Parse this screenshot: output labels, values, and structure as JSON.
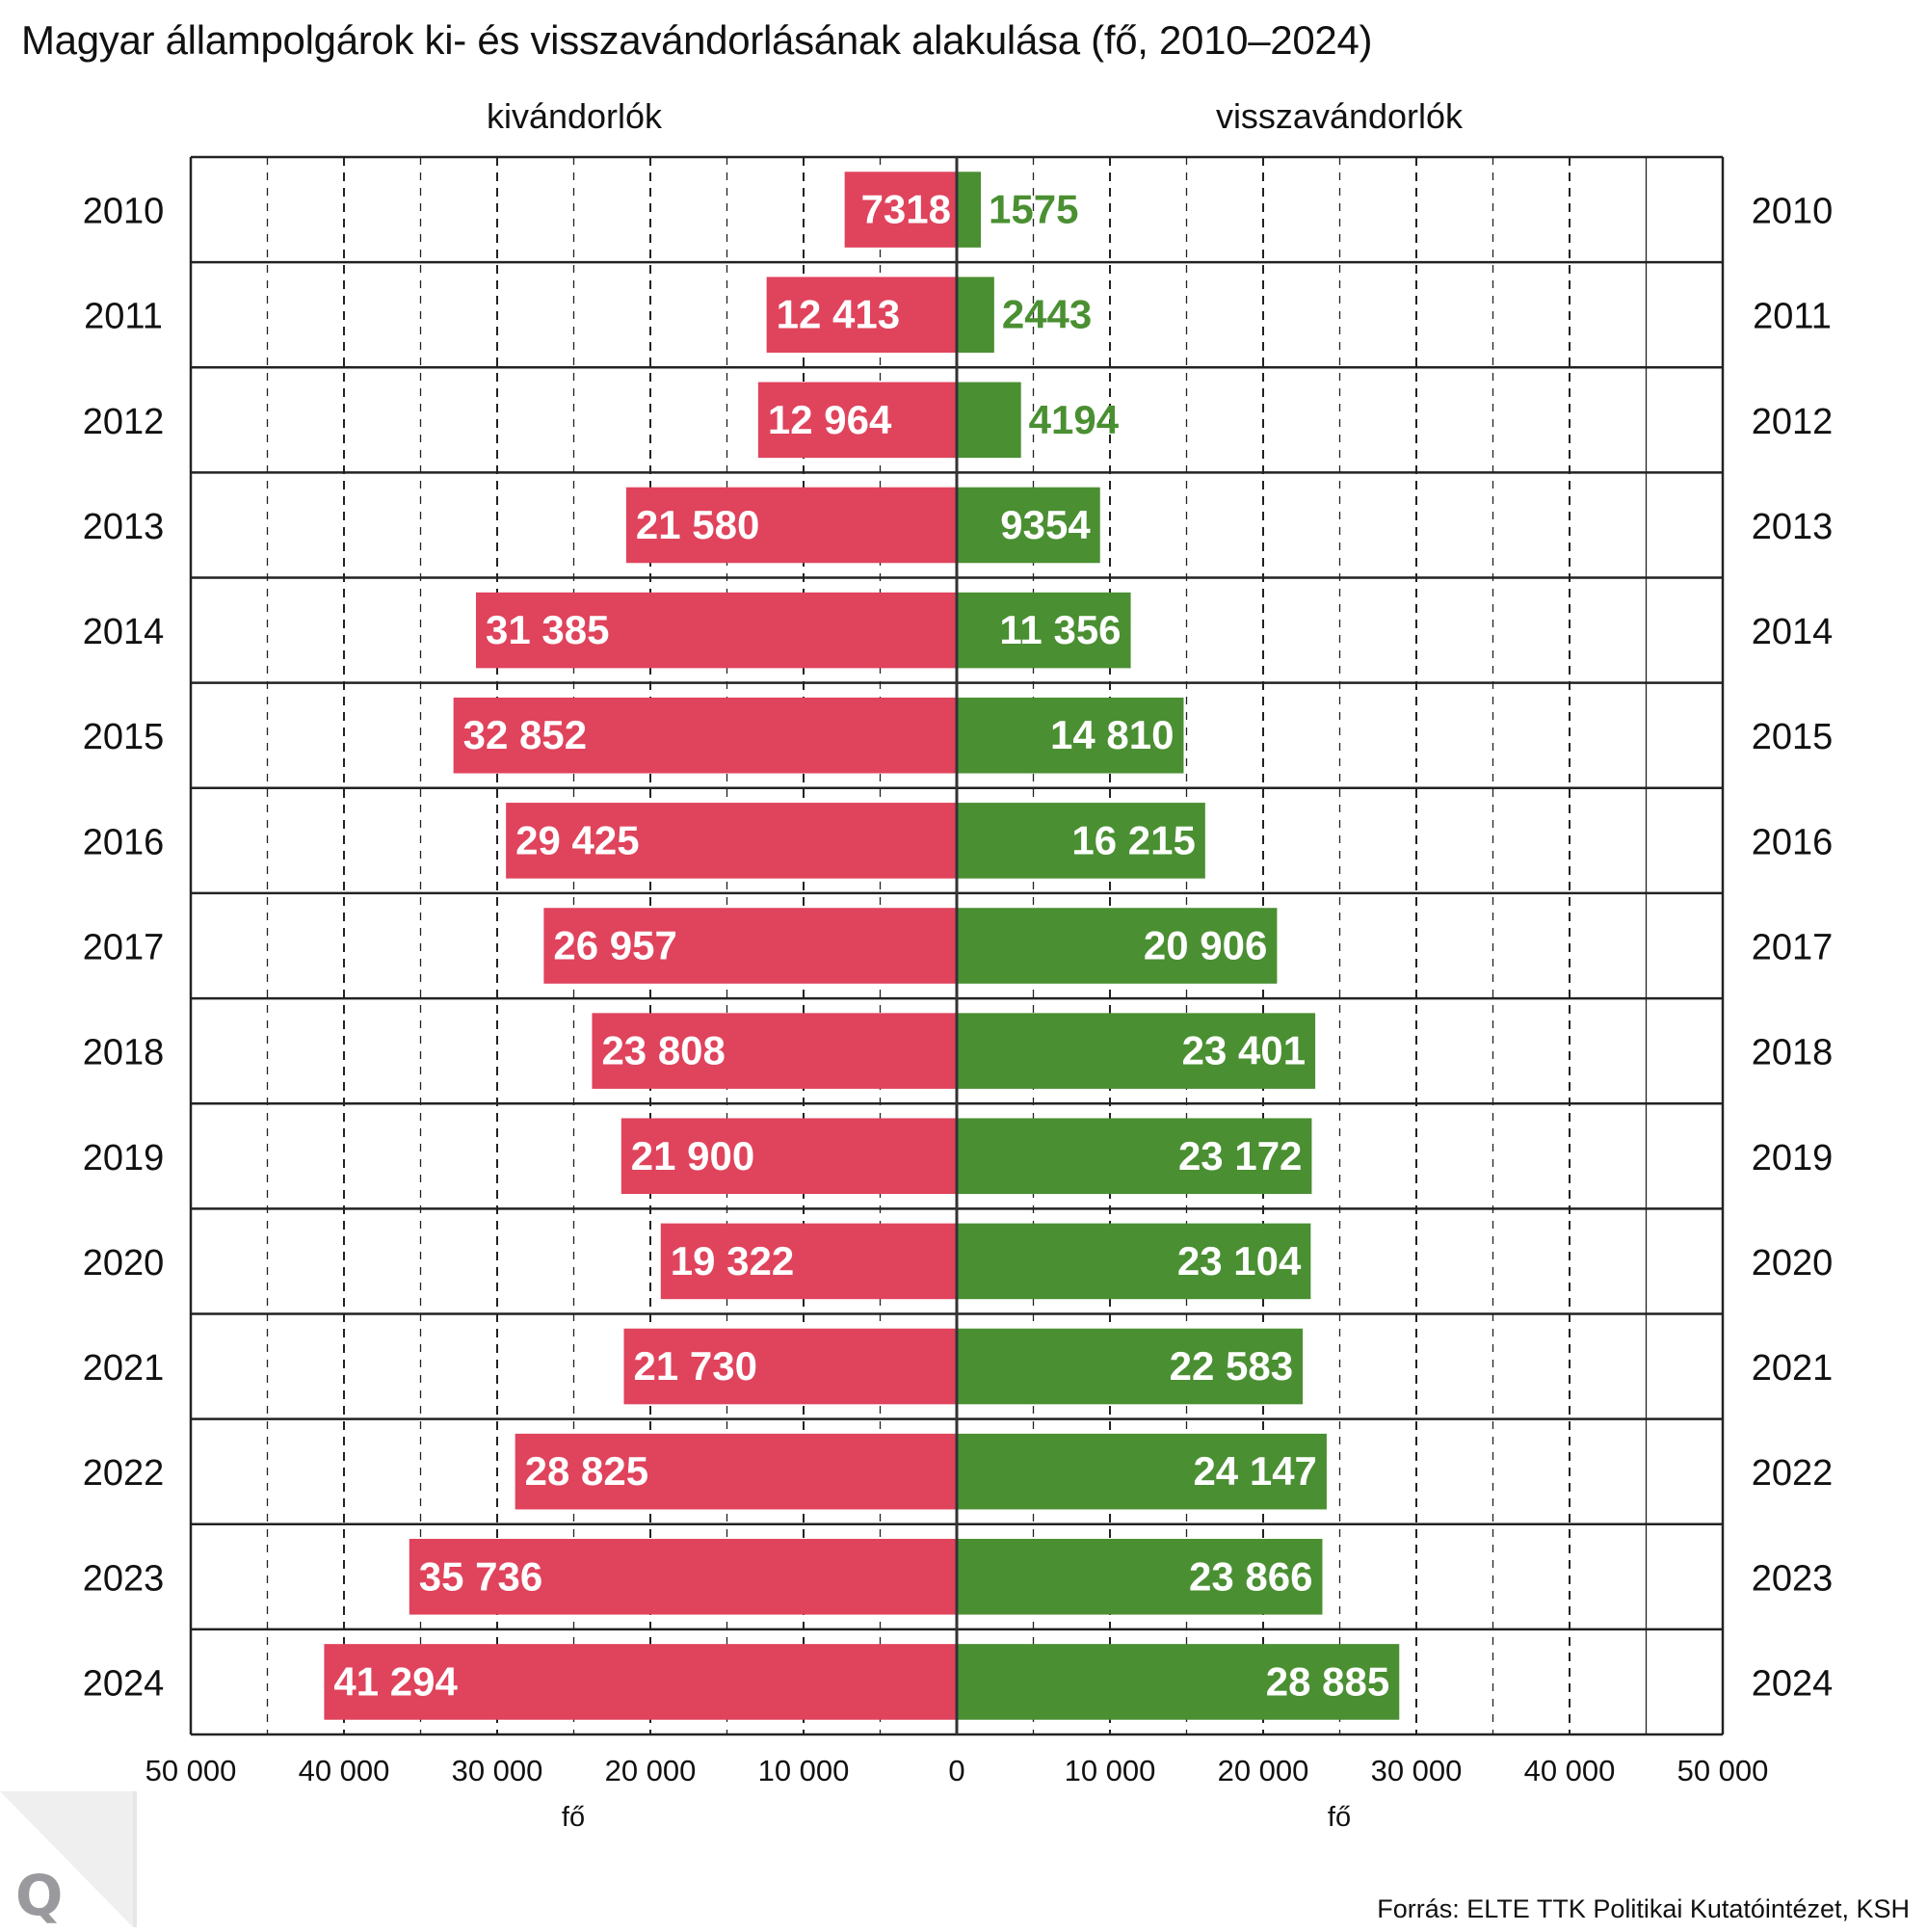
{
  "title": "Magyar állampolgárok ki- és visszavándorlásának alakulása (fő, 2010–2024)",
  "left_header": "kivándorlók",
  "right_header": "visszavándorlók",
  "unit_label": "fő",
  "source": "Forrás: ELTE TTK Politikai Kutatóintézet, KSH",
  "logo": {
    "icon": "q-logo-icon",
    "letter": "Q"
  },
  "colors": {
    "emigrants": "#e0435c",
    "returnees": "#4a8f32",
    "grid": "#222222",
    "text": "#111111",
    "logo_bg": "#efefef",
    "logo_letter": "#9a9a9e"
  },
  "chart_data": {
    "type": "bar",
    "orientation": "horizontal-diverging",
    "title": "Magyar állampolgárok ki- és visszavándorlásának alakulása (fő, 2010–2024)",
    "xlabel": "fő",
    "ylabel": "",
    "categories": [
      "2010",
      "2011",
      "2012",
      "2013",
      "2014",
      "2015",
      "2016",
      "2017",
      "2018",
      "2019",
      "2020",
      "2021",
      "2022",
      "2023",
      "2024"
    ],
    "series": [
      {
        "name": "kivándorlók",
        "side": "left",
        "color": "#e0435c",
        "values": [
          7318,
          12413,
          12964,
          21580,
          31385,
          32852,
          29425,
          26957,
          23808,
          21900,
          19322,
          21730,
          28825,
          35736,
          41294
        ],
        "labels": [
          "7318",
          "12 413",
          "12 964",
          "21 580",
          "31 385",
          "32 852",
          "29 425",
          "26 957",
          "23 808",
          "21 900",
          "19 322",
          "21 730",
          "28 825",
          "35 736",
          "41 294"
        ]
      },
      {
        "name": "visszavándorlók",
        "side": "right",
        "color": "#4a8f32",
        "values": [
          1575,
          2443,
          4194,
          9354,
          11356,
          14810,
          16215,
          20906,
          23401,
          23172,
          23104,
          22583,
          24147,
          23866,
          28885
        ],
        "labels": [
          "1575",
          "2443",
          "4194",
          "9354",
          "11 356",
          "14 810",
          "16 215",
          "20 906",
          "23 401",
          "23 172",
          "23 104",
          "22 583",
          "24 147",
          "23 866",
          "28 885"
        ]
      }
    ],
    "xlim": [
      -50000,
      50000
    ],
    "xticks": [
      -50000,
      -40000,
      -30000,
      -20000,
      -10000,
      0,
      10000,
      20000,
      30000,
      40000,
      50000
    ],
    "xtick_labels": [
      "50 000",
      "40 000",
      "30 000",
      "20 000",
      "10 000",
      "0",
      "10 000",
      "20 000",
      "30 000",
      "40 000",
      "50 000"
    ],
    "minor_grid_step": 5000,
    "grid": true,
    "legend": "none (column headers above each side)"
  }
}
